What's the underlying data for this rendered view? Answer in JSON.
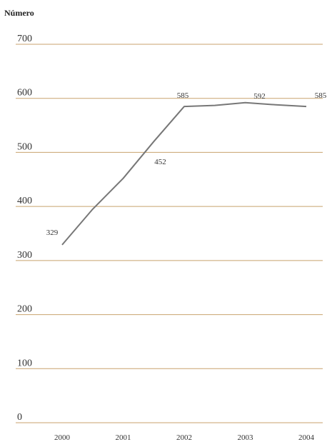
{
  "chart_data": {
    "type": "line",
    "title": "",
    "ylabel": "Número",
    "xlabel": "",
    "ylim": [
      0,
      700
    ],
    "yticks": [
      0,
      100,
      200,
      300,
      400,
      500,
      600,
      700
    ],
    "xticks": [
      "2000",
      "2001",
      "2002",
      "2003",
      "2004"
    ],
    "grid": true,
    "colors": {
      "grid": "#c8a26e",
      "line": "#777777"
    },
    "series": [
      {
        "x": [
          "2000",
          "2000.5",
          "2001",
          "2001.5",
          "2002",
          "2002.5",
          "2003",
          "2003.5",
          "2004"
        ],
        "values": [
          329,
          395,
          452,
          520,
          585,
          587,
          592,
          588,
          585
        ]
      }
    ],
    "data_labels": [
      {
        "x": "2000",
        "value": 329,
        "text": "329"
      },
      {
        "x": "2001",
        "value": 452,
        "text": "452"
      },
      {
        "x": "2002",
        "value": 585,
        "text": "585"
      },
      {
        "x": "2003",
        "value": 592,
        "text": "592"
      },
      {
        "x": "2004",
        "value": 585,
        "text": "585"
      }
    ]
  }
}
